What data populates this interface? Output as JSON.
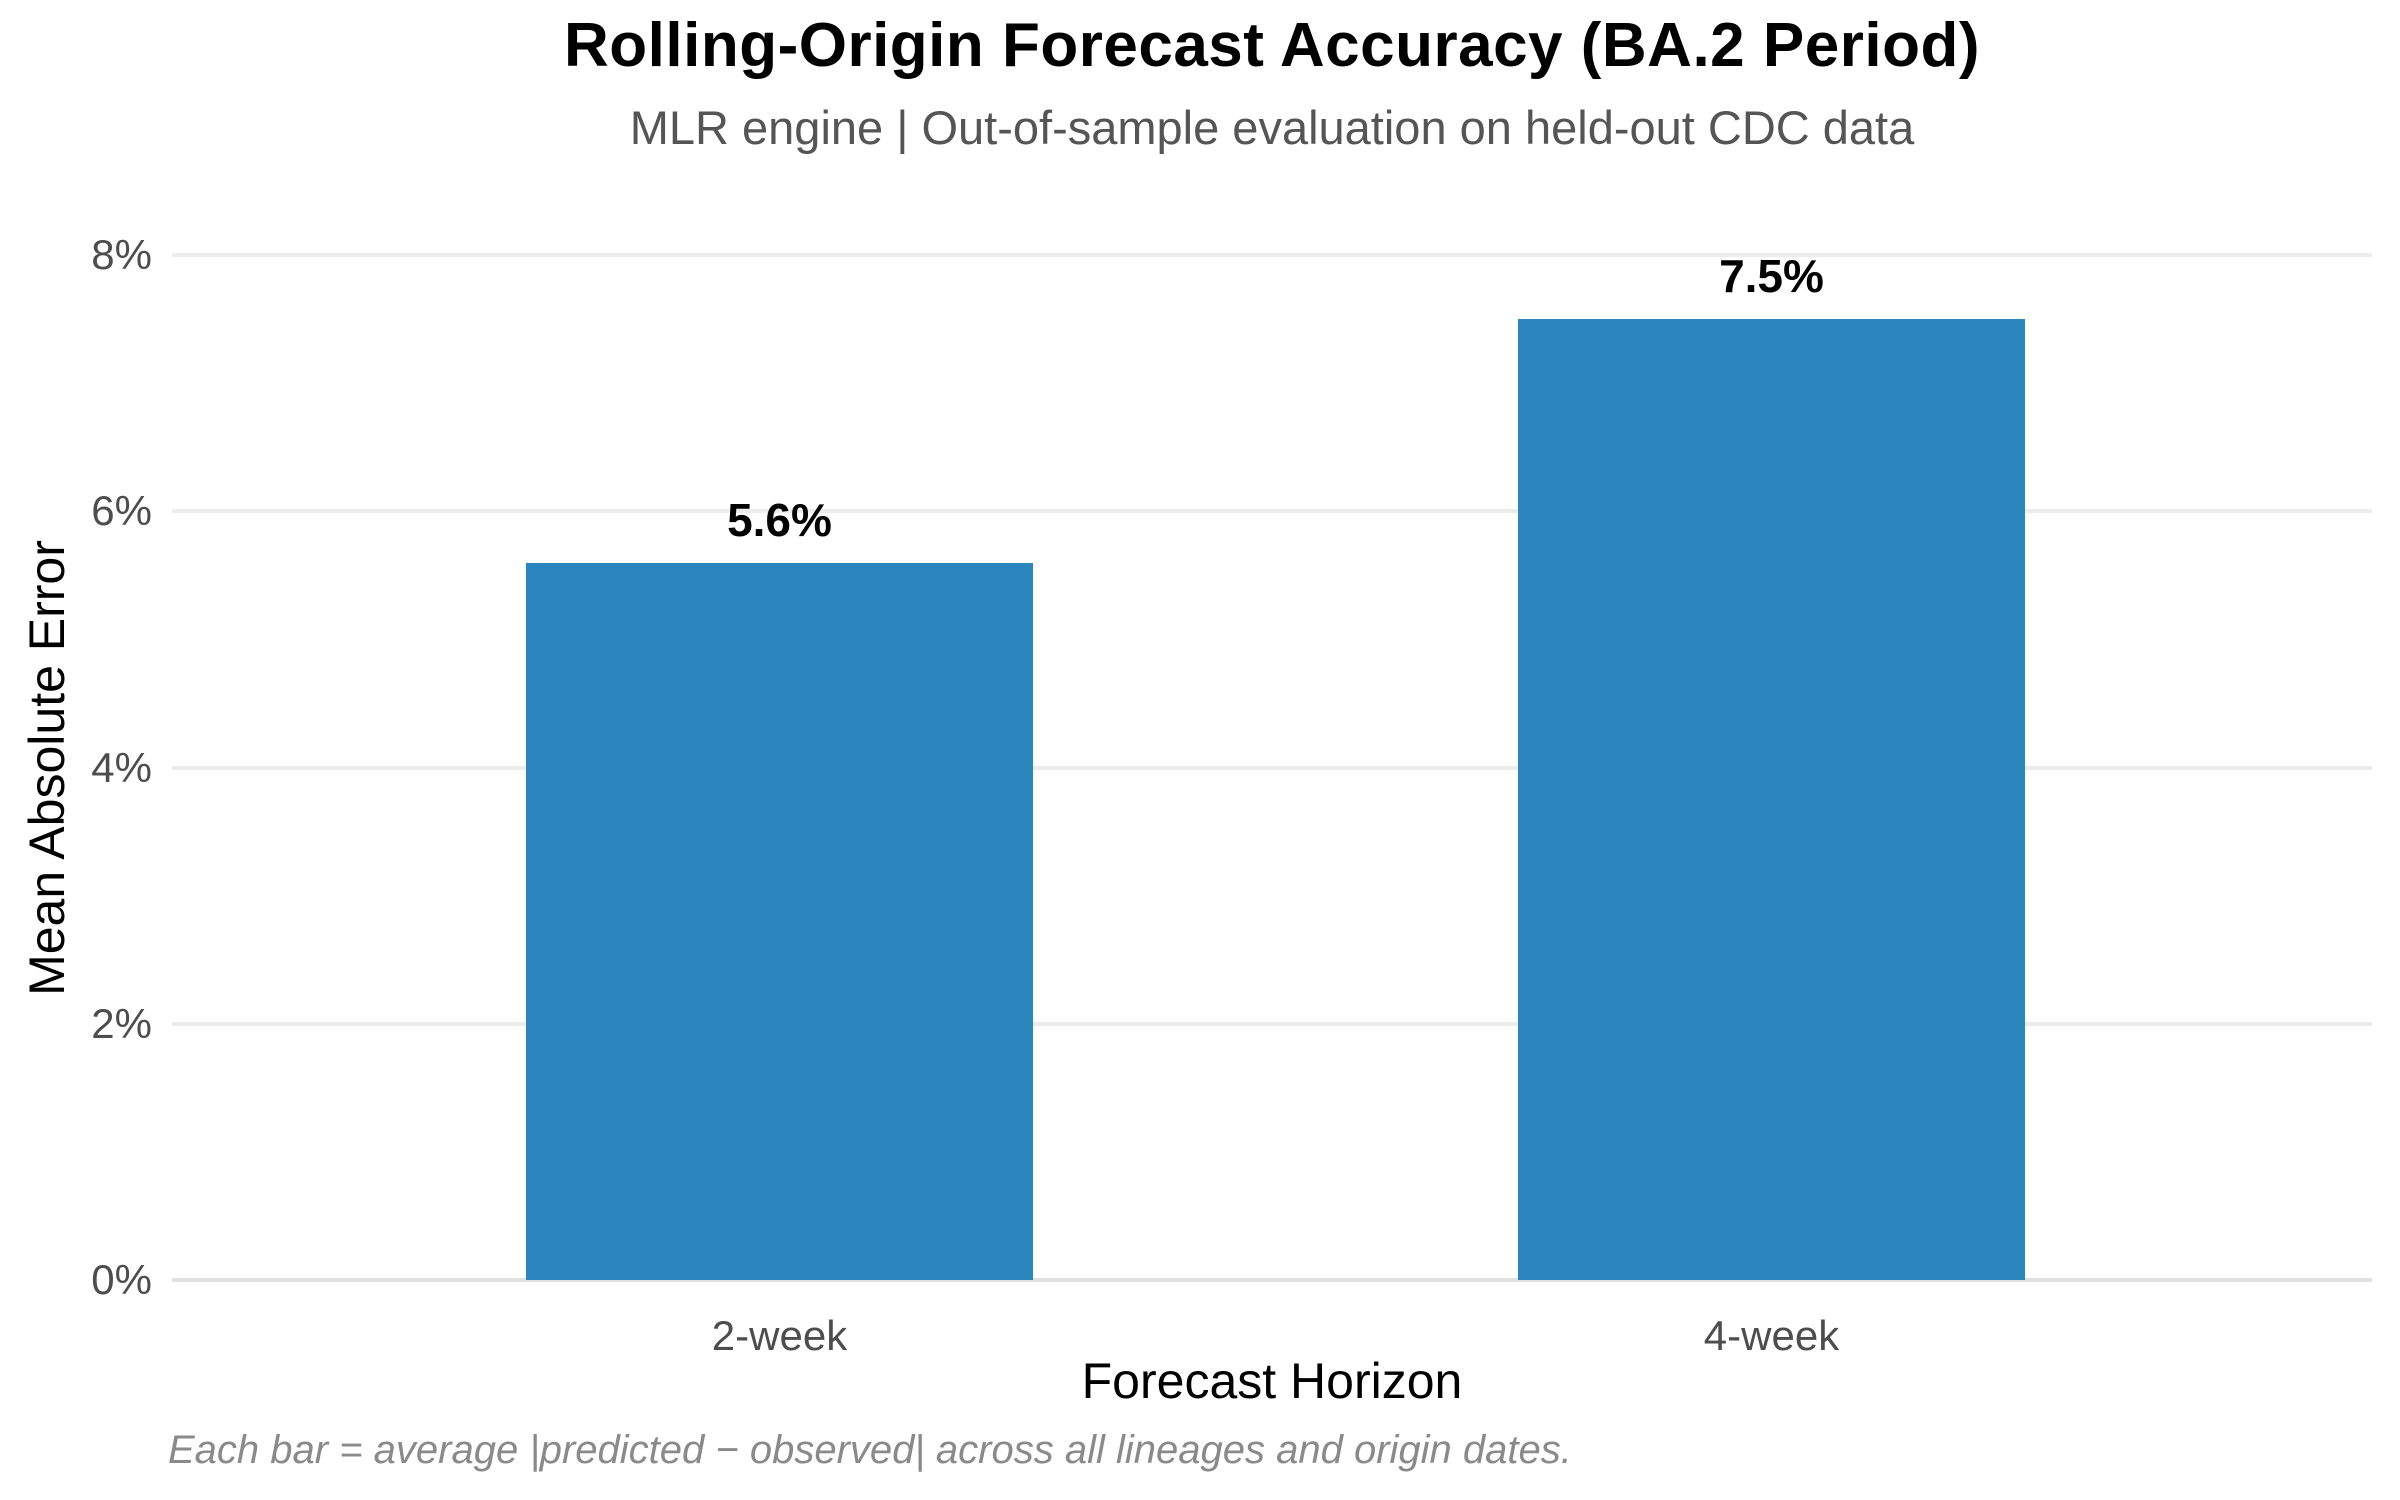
{
  "chart_data": {
    "type": "bar",
    "title": "Rolling-Origin Forecast Accuracy (BA.2 Period)",
    "subtitle": "MLR engine | Out-of-sample evaluation on held-out CDC data",
    "xlabel": "Forecast Horizon",
    "ylabel": "Mean Absolute Error",
    "categories": [
      "2-week",
      "4-week"
    ],
    "values": [
      5.6,
      7.5
    ],
    "value_labels": [
      "5.6%",
      "7.5%"
    ],
    "ylim": [
      0,
      8
    ],
    "yticks": [
      0,
      2,
      4,
      6,
      8
    ],
    "ytick_labels": [
      "0%",
      "2%",
      "4%",
      "6%",
      "8%"
    ],
    "grid": "horizontal-only",
    "legend": "none",
    "bar_color": "#2a86bd",
    "footnote": "Each bar = average |predicted − observed| across all lineages and origin dates."
  }
}
